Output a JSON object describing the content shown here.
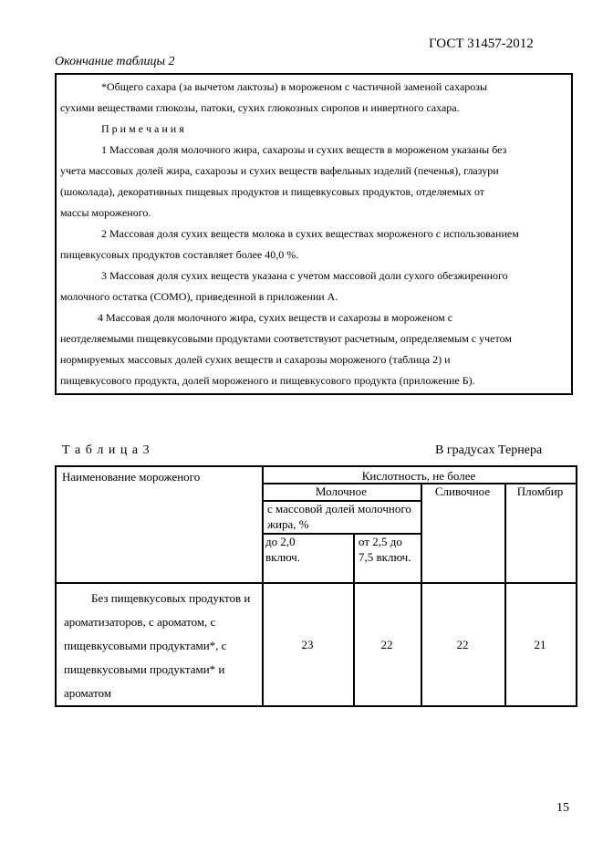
{
  "header": {
    "standard": "ГОСТ 31457-2012"
  },
  "table2_end": {
    "caption": "Окончание таблицы 2",
    "lines": [
      {
        "text": "*Общего сахара (за вычетом лактозы) в мороженом с частичной заменой сахарозы",
        "indent": true
      },
      {
        "text": "сухими веществами глюкозы, патоки, сухих глюкозных сиропов и инвертного сахара.",
        "indent": false
      },
      {
        "text": "П р и м е ч а н и я",
        "indent": true
      },
      {
        "text": "1 Массовая доля молочного жира, сахарозы и сухих веществ в мороженом указаны без",
        "indent": true
      },
      {
        "text": "учета массовых долей жира, сахарозы и сухих веществ вафельных изделий (печенья), глазури",
        "indent": false
      },
      {
        "text": "(шоколада), декоративных пищевых продуктов и пищевкусовых продуктов, отделяемых от",
        "indent": false
      },
      {
        "text": "массы мороженого.",
        "indent": false
      },
      {
        "text": "2 Массовая доля сухих веществ молока в сухих веществах мороженого с использованием",
        "indent": true
      },
      {
        "text": "пищевкусовых продуктов составляет более 40,0 %.",
        "indent": false
      },
      {
        "text": "3 Массовая доля сухих веществ указана с учетом массовой доли сухого обезжиренного",
        "indent": true
      },
      {
        "text": "молочного остатка (СОМО), приведенной в приложении А.",
        "indent": false
      },
      {
        "text": "4 Массовая доля молочного жира, сухих веществ и сахарозы в мороженом с",
        "indent": true
      },
      {
        "text": "неотделяемыми пищевкусовыми продуктами соответствуют расчетным, определяемым с учетом",
        "indent": false
      },
      {
        "text": "нормируемых массовых долей сухих веществ и сахарозы мороженого (таблица 2) и",
        "indent": false
      },
      {
        "text": "пищевкусового продукта, долей мороженого и пищевкусового продукта (приложение Б).",
        "indent": false
      }
    ]
  },
  "table3": {
    "label": "Т а б л и ц а 3",
    "unit": "В градусах Тернера",
    "headers": {
      "name": "Наименование мороженого",
      "acidity": "Кислотность, не более",
      "milk": "Молочное",
      "cream": "Сливочное",
      "plombir": "Пломбир",
      "fat_share": "с массовой долей молочного жира, %",
      "up_to_2": "до 2,0 включ.",
      "from_2_5": "от 2,5 до 7,5 включ."
    },
    "rows": [
      {
        "name": "Без пищевкусовых продуктов и ароматизаторов, с ароматом, с пищевкусовыми продуктами*, с пищевкусовыми продуктами* и ароматом",
        "values": [
          "23",
          "22",
          "22",
          "21"
        ]
      }
    ]
  },
  "page_number": "15"
}
